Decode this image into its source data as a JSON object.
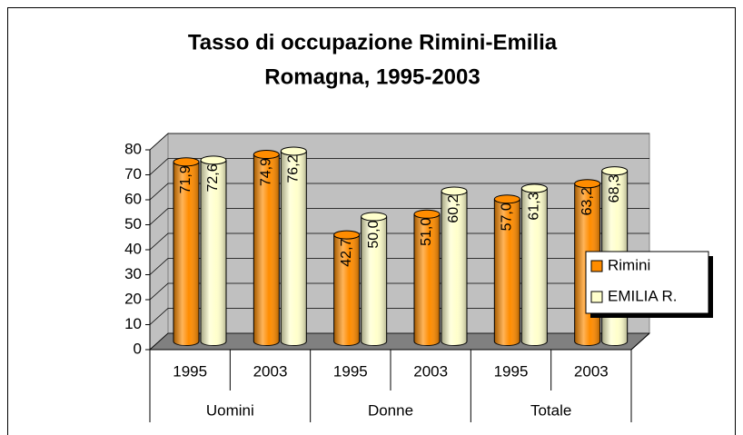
{
  "chart_data": {
    "type": "bar",
    "title": [
      "Tasso di occupazione Rimini-Emilia",
      "Romagna, 1995-2003"
    ],
    "categories": [
      "1995",
      "2003",
      "1995",
      "2003",
      "1995",
      "2003"
    ],
    "groups": [
      "Uomini",
      "Donne",
      "Totale"
    ],
    "series": [
      {
        "name": "Rimini",
        "color": "#ff8c00",
        "values": [
          71.9,
          74.9,
          42.7,
          51.0,
          57.0,
          63.2
        ],
        "value_labels": [
          "71,9",
          "74,9",
          "42,7",
          "51,0",
          "57,0",
          "63,2"
        ]
      },
      {
        "name": "EMILIA R.",
        "color": "#ffffcc",
        "values": [
          72.6,
          76.2,
          50.0,
          60.2,
          61.3,
          68.3
        ],
        "value_labels": [
          "72,6",
          "76,2",
          "50,0",
          "60,2",
          "61,3",
          "68,3"
        ]
      }
    ],
    "ylim": [
      0,
      80
    ],
    "yticks": [
      0,
      10,
      20,
      30,
      40,
      50,
      60,
      70,
      80
    ],
    "grid": true,
    "legend": "right"
  }
}
